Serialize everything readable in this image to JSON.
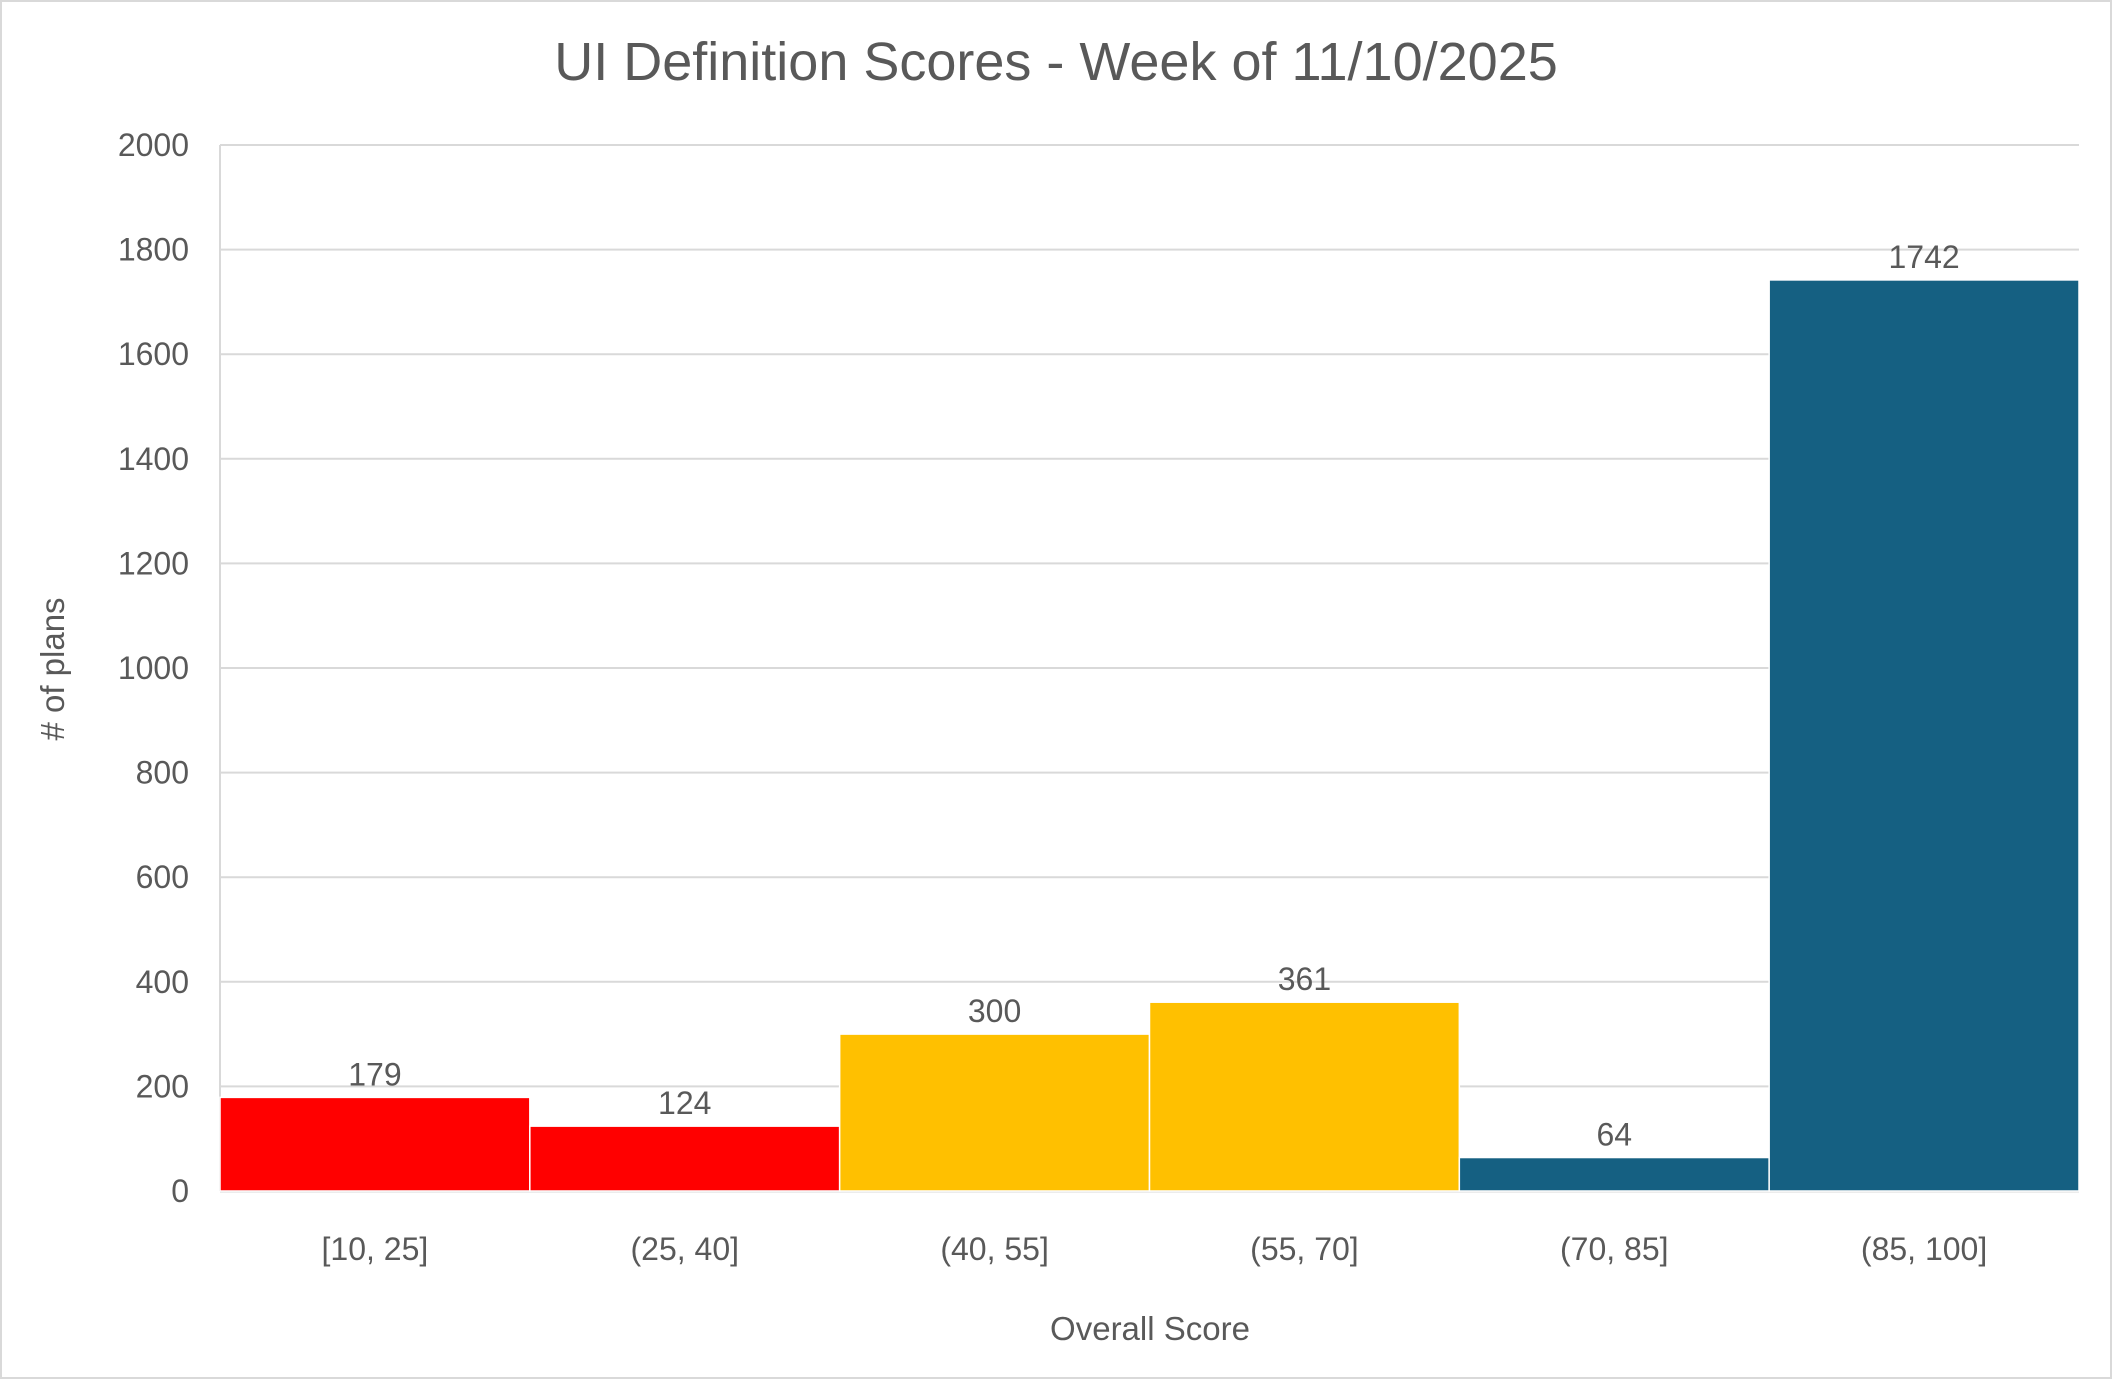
{
  "chart_data": {
    "type": "bar",
    "title": "UI Definition Scores - Week of 11/10/2025",
    "xlabel": "Overall Score",
    "ylabel": "# of plans",
    "categories": [
      "[10, 25]",
      "(25, 40]",
      "(40, 55]",
      "(55, 70]",
      "(70, 85]",
      "(85, 100]"
    ],
    "values": [
      179,
      124,
      300,
      361,
      64,
      1742
    ],
    "bar_colors": [
      "#FF0000",
      "#FF0000",
      "#FFC000",
      "#FFC000",
      "#156082",
      "#156082"
    ],
    "ylim": [
      0,
      2000
    ],
    "yticks": [
      0,
      200,
      400,
      600,
      800,
      1000,
      1200,
      1400,
      1600,
      1800,
      2000
    ],
    "grid": true,
    "legend": "none",
    "data_labels": true
  }
}
